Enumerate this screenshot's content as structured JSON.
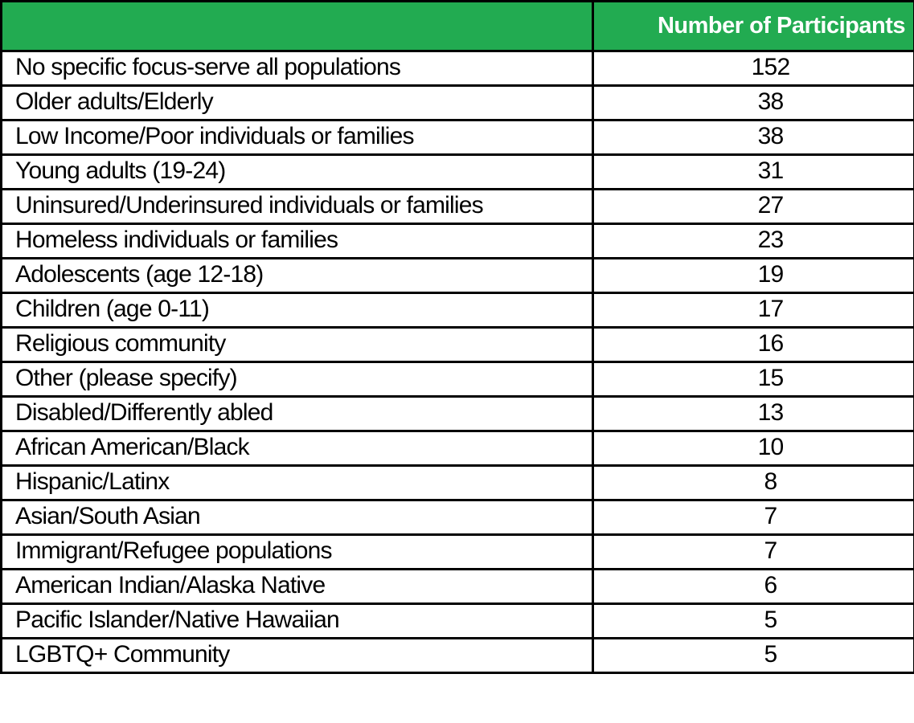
{
  "table": {
    "header": {
      "population_label": "",
      "participants_label": "Number of Participants"
    },
    "rows": [
      {
        "label": "No specific focus-serve all populations",
        "value": "152"
      },
      {
        "label": "Older adults/Elderly",
        "value": "38"
      },
      {
        "label": "Low Income/Poor individuals or families",
        "value": "38"
      },
      {
        "label": "Young adults (19-24)",
        "value": "31"
      },
      {
        "label": "Uninsured/Underinsured individuals or families",
        "value": "27"
      },
      {
        "label": "Homeless individuals or families",
        "value": "23"
      },
      {
        "label": "Adolescents (age 12-18)",
        "value": "19"
      },
      {
        "label": "Children (age 0-11)",
        "value": "17"
      },
      {
        "label": "Religious community",
        "value": "16"
      },
      {
        "label": "Other (please specify)",
        "value": "15"
      },
      {
        "label": "Disabled/Differently abled",
        "value": "13"
      },
      {
        "label": "African American/Black",
        "value": "10"
      },
      {
        "label": "Hispanic/Latinx",
        "value": "8"
      },
      {
        "label": "Asian/South Asian",
        "value": "7"
      },
      {
        "label": "Immigrant/Refugee populations",
        "value": "7"
      },
      {
        "label": "American Indian/Alaska Native",
        "value": "6"
      },
      {
        "label": "Pacific Islander/Native Hawaiian",
        "value": "5"
      },
      {
        "label": "LGBTQ+ Community",
        "value": "5"
      }
    ]
  },
  "colors": {
    "header_bg": "#22AB51",
    "header_text": "#FFFFFF",
    "border": "#000000",
    "row_bg": "#FFFFFF",
    "row_text": "#000000"
  },
  "chart_data": {
    "type": "table",
    "title": "",
    "columns": [
      "",
      "Number of Participants"
    ],
    "categories": [
      "No specific focus-serve all populations",
      "Older adults/Elderly",
      "Low Income/Poor individuals or families",
      "Young adults (19-24)",
      "Uninsured/Underinsured individuals or families",
      "Homeless individuals or families",
      "Adolescents (age 12-18)",
      "Children (age 0-11)",
      "Religious community",
      "Other (please specify)",
      "Disabled/Differently abled",
      "African American/Black",
      "Hispanic/Latinx",
      "Asian/South Asian",
      "Immigrant/Refugee populations",
      "American Indian/Alaska Native",
      "Pacific Islander/Native Hawaiian",
      "LGBTQ+ Community"
    ],
    "values": [
      152,
      38,
      38,
      31,
      27,
      23,
      19,
      17,
      16,
      15,
      13,
      10,
      8,
      7,
      7,
      6,
      5,
      5
    ],
    "layout": {
      "header_position": "top",
      "grid": true,
      "value_alignment": "center"
    }
  }
}
